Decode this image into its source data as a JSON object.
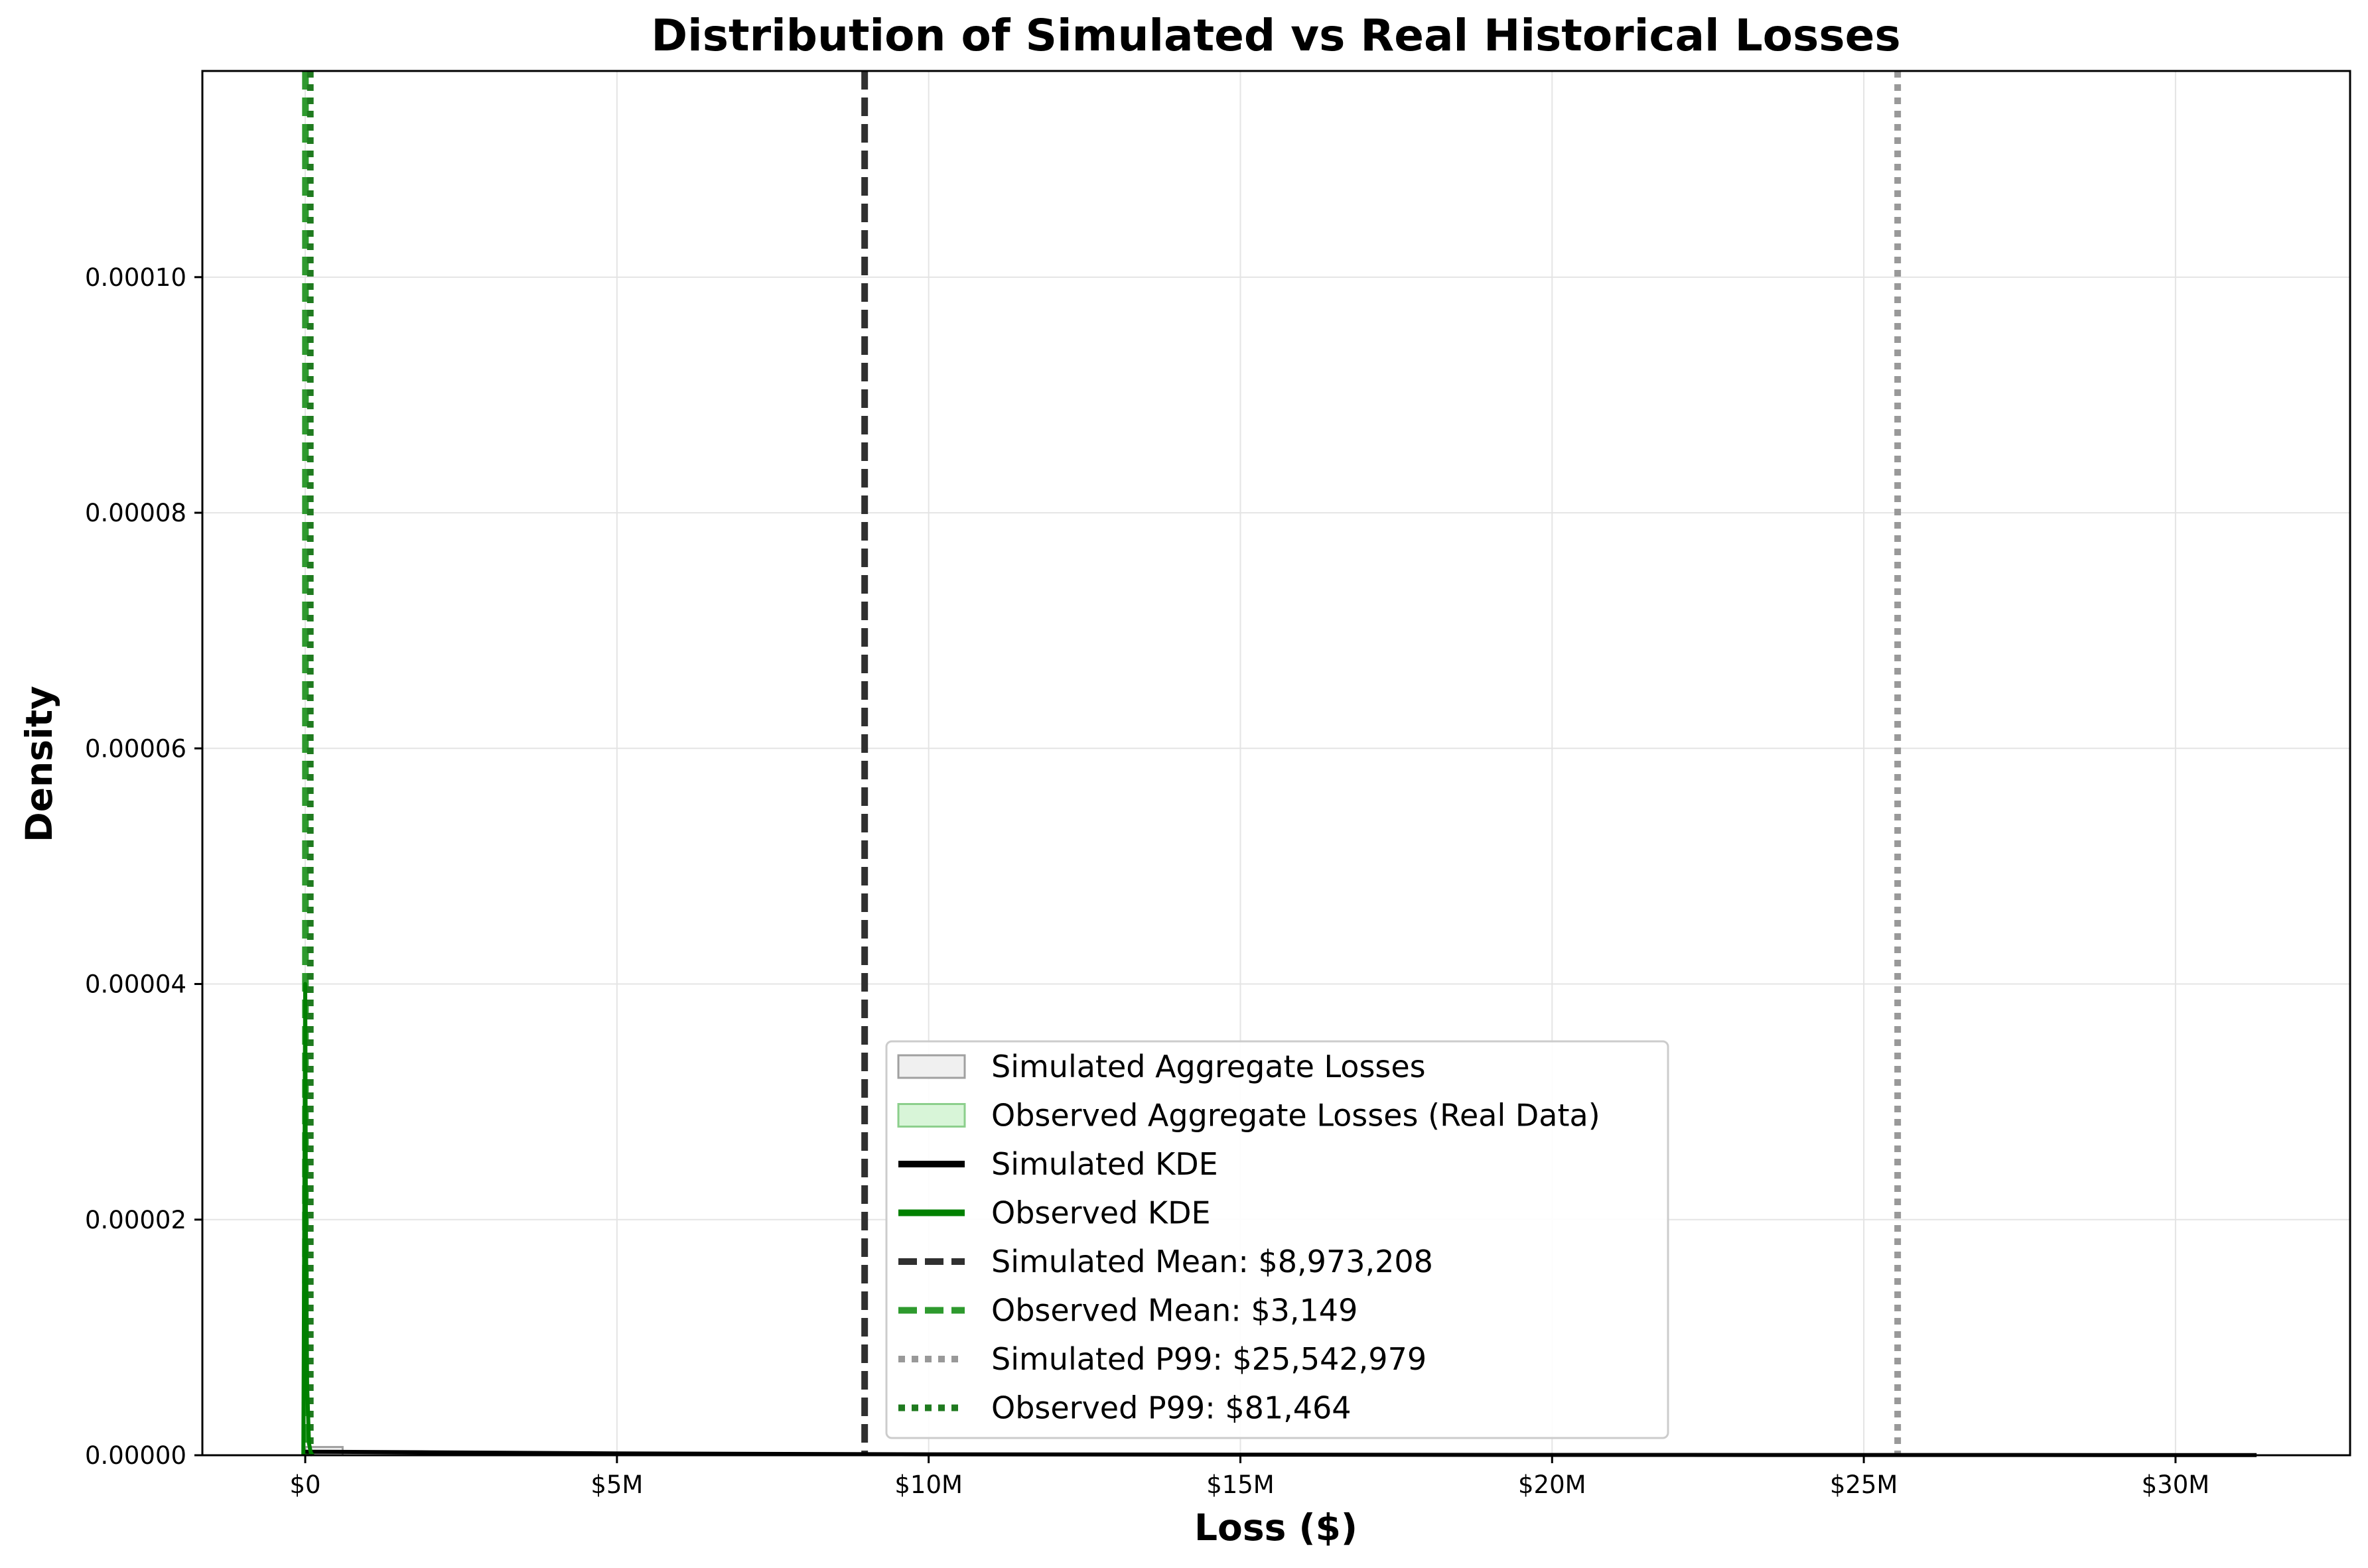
{
  "chart_data": {
    "type": "histogram",
    "title": "Distribution of Simulated vs Real Historical Losses",
    "xlabel": "Loss ($)",
    "ylabel": "Density",
    "xlim": [
      -1650000,
      32800000
    ],
    "ylim": [
      0,
      0.0001175
    ],
    "x_ticks": [
      {
        "value": 0,
        "label": "$0"
      },
      {
        "value": 5000000,
        "label": "$5M"
      },
      {
        "value": 10000000,
        "label": "$10M"
      },
      {
        "value": 15000000,
        "label": "$15M"
      },
      {
        "value": 20000000,
        "label": "$20M"
      },
      {
        "value": 25000000,
        "label": "$25M"
      },
      {
        "value": 30000000,
        "label": "$30M"
      }
    ],
    "y_ticks": [
      {
        "value": 0,
        "label": "0.00000"
      },
      {
        "value": 2e-05,
        "label": "0.00002"
      },
      {
        "value": 4e-05,
        "label": "0.00004"
      },
      {
        "value": 6e-05,
        "label": "0.00006"
      },
      {
        "value": 8e-05,
        "label": "0.00008"
      },
      {
        "value": 0.0001,
        "label": "0.00010"
      }
    ],
    "grid": true,
    "legend_position": "lower-center",
    "series": [
      {
        "name": "Simulated Aggregate Losses",
        "kind": "histogram",
        "face_color": "#f0f0f0",
        "edge_color": "#a0a0a0",
        "bins": [
          {
            "x0": 0,
            "x1": 600000,
            "density": 7e-07
          }
        ]
      },
      {
        "name": "Observed Aggregate Losses (Real Data)",
        "kind": "histogram",
        "face_color": "#d8f5d8",
        "edge_color": "#8ccf8c",
        "bins": [
          {
            "x0": 0,
            "x1": 40000,
            "density": 2e-07
          }
        ]
      },
      {
        "name": "Simulated KDE",
        "kind": "line",
        "color": "#000000",
        "x": [
          0,
          2000000,
          5000000,
          10000000,
          15000000,
          20000000,
          25000000,
          31300000
        ],
        "y": [
          3e-07,
          2.5e-07,
          1.5e-07,
          8e-08,
          5e-08,
          3e-08,
          2e-08,
          1e-08
        ]
      },
      {
        "name": "Observed KDE",
        "kind": "line",
        "color": "#008000",
        "x": [
          -30000,
          0,
          3000,
          10000,
          30000,
          60000,
          90000,
          120000
        ],
        "y": [
          0,
          4e-05,
          3.5e-05,
          2e-05,
          6e-06,
          1e-06,
          2e-07,
          0
        ]
      },
      {
        "name": "Simulated Mean: $8,973,208",
        "kind": "vline",
        "value": 8973208,
        "color": "#303030",
        "style": "dashed"
      },
      {
        "name": "Observed Mean: $3,149",
        "kind": "vline",
        "value": 3149,
        "color": "#2e9a2e",
        "style": "dashed"
      },
      {
        "name": "Simulated P99: $25,542,979",
        "kind": "vline",
        "value": 25542979,
        "color": "#999999",
        "style": "dotted"
      },
      {
        "name": "Observed P99: $81,464",
        "kind": "vline",
        "value": 81464,
        "color": "#1f7a1f",
        "style": "dotted"
      }
    ]
  }
}
